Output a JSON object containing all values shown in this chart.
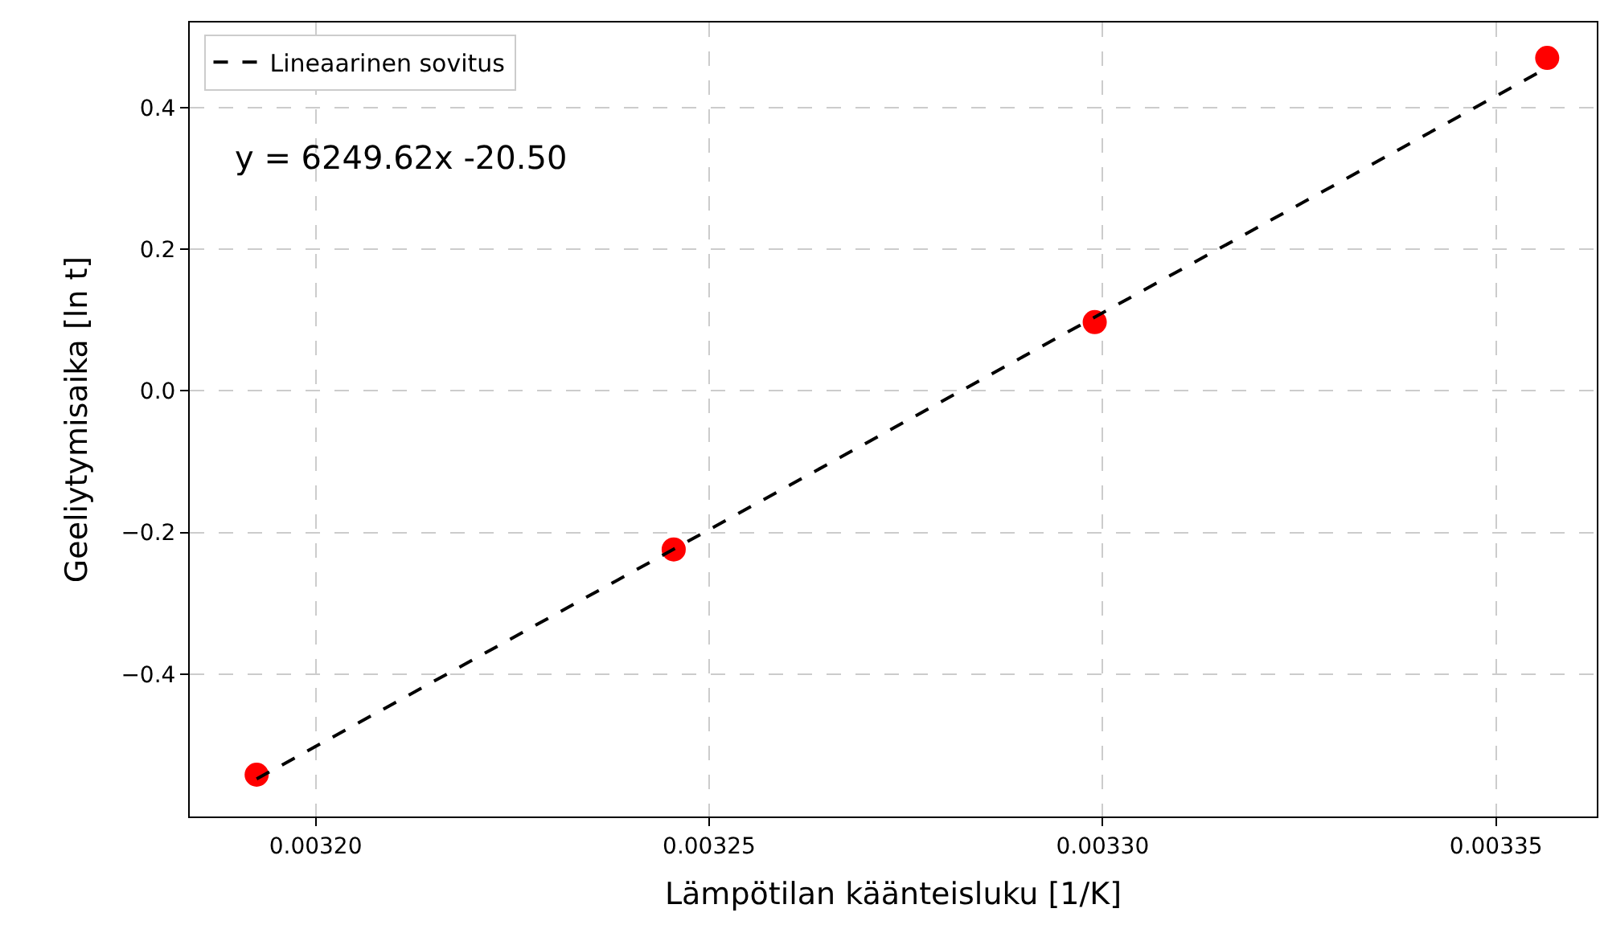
{
  "chart_data": {
    "type": "scatter",
    "xlabel": "Lämpötilan käänteisluku [1/K]",
    "ylabel": "Geeliytymisaika [ln t]",
    "series": [
      {
        "color": "#ff0000",
        "marker": "circle",
        "x": [
          0.0031925,
          0.0032455,
          0.003299,
          0.0033565
        ],
        "values": [
          -0.542,
          -0.224,
          0.097,
          0.47
        ]
      },
      {
        "type": "line",
        "name": "Lineaarinen sovitus",
        "color": "#000000",
        "line_style": "dashed",
        "marker": "none",
        "x": [
          0.0031925,
          0.0033565
        ],
        "values": [
          -0.548,
          0.456
        ]
      }
    ],
    "annotations": [
      "y = 6249.62x -20.50"
    ],
    "xlim": [
      0.003184,
      0.0033628
    ],
    "ylim": [
      -0.601,
      0.52
    ],
    "xticks": [
      {
        "value": 0.0032,
        "label": "0.00320"
      },
      {
        "value": 0.00325,
        "label": "0.00325"
      },
      {
        "value": 0.0033,
        "label": "0.00330"
      },
      0.00335
    ],
    "yticks": [
      {
        "value": -0.4,
        "label": "−0.4"
      },
      {
        "value": -0.2,
        "label": "−0.2"
      },
      {
        "value": 0.0,
        "label": "0.0"
      },
      0.2,
      0.4
    ],
    "grid": true,
    "legend": "top left"
  }
}
